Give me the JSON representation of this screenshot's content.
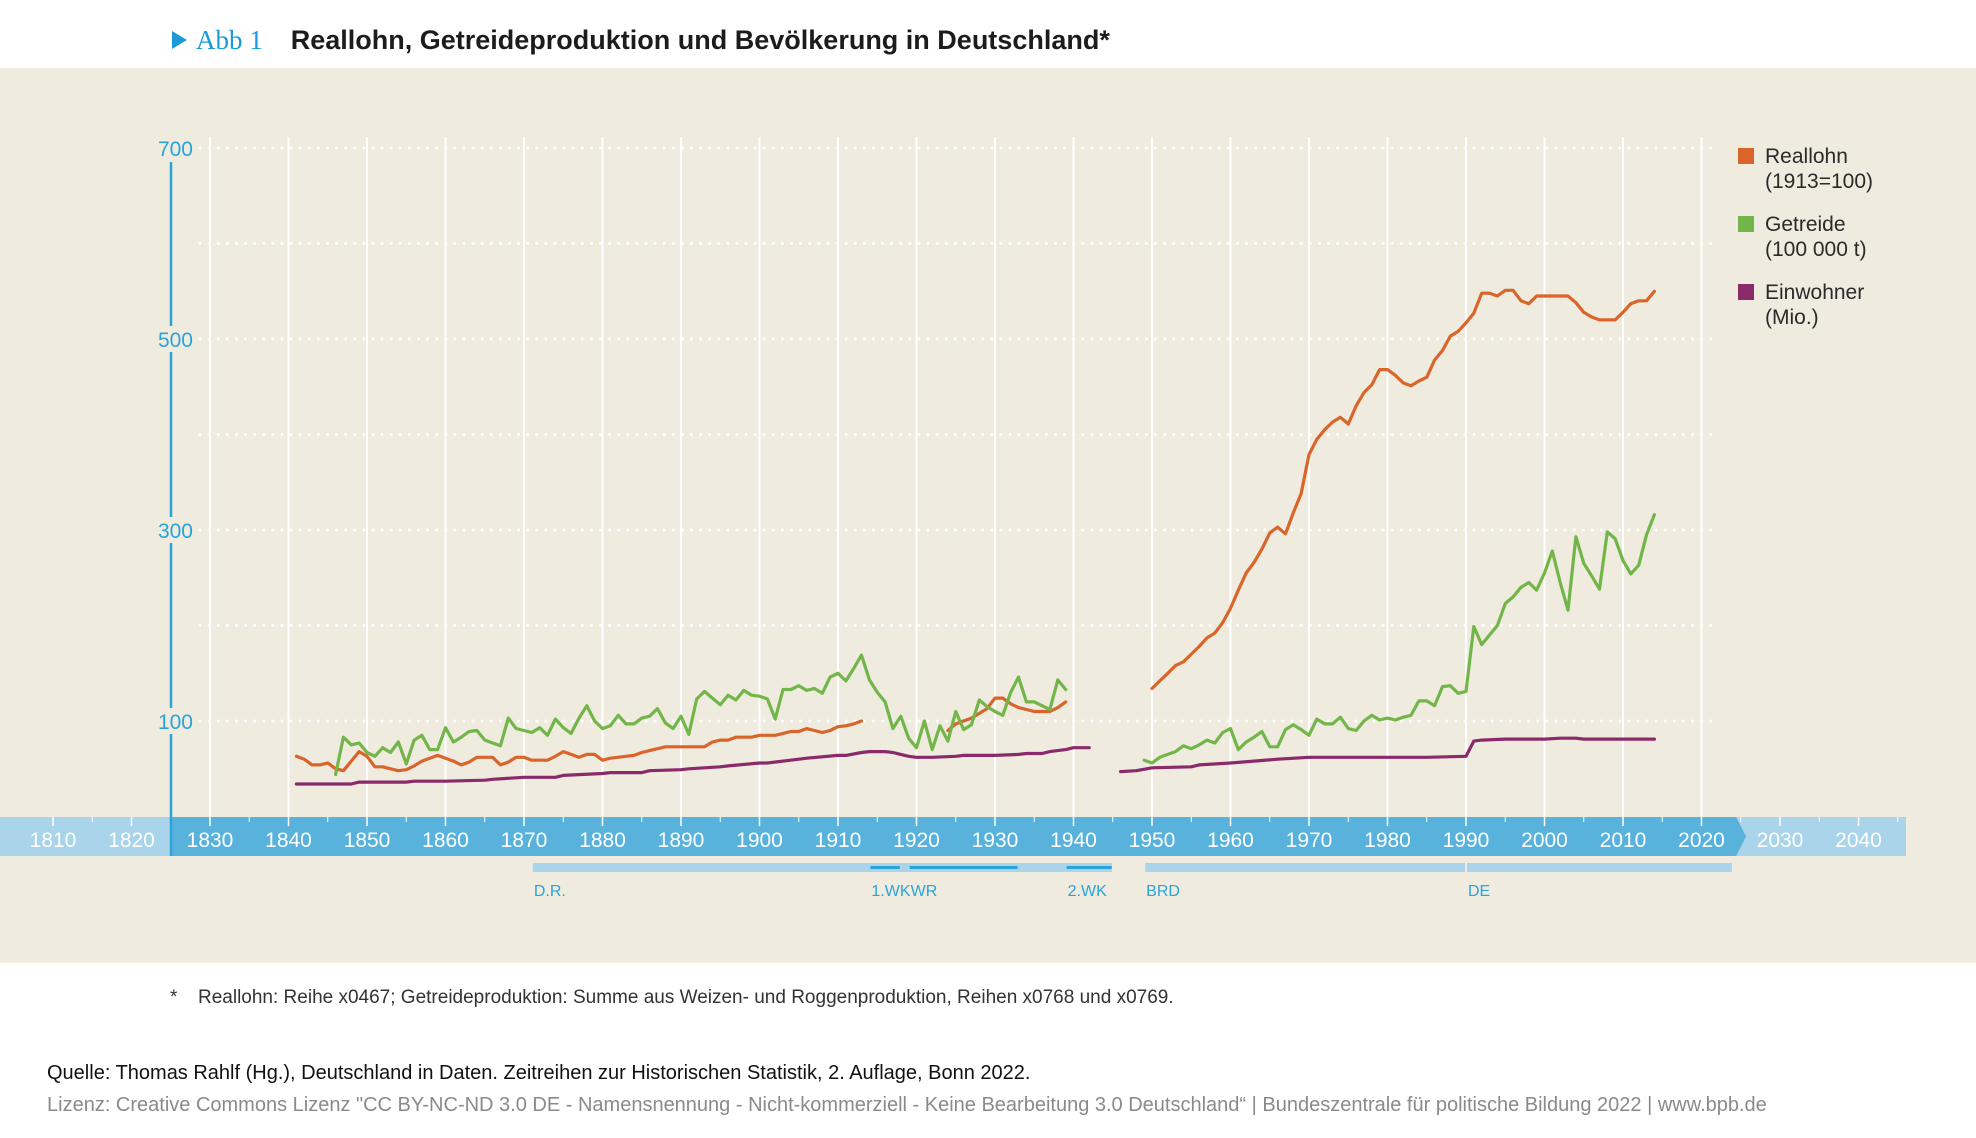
{
  "header": {
    "marker_label": "Abb 1",
    "title": "Reallohn, Getreideproduktion und Bevölkerung in Deutschland*"
  },
  "legend": [
    {
      "label": "Reallohn\n(1913=100)",
      "color": "#d9652b"
    },
    {
      "label": "Getreide\n(100 000 t)",
      "color": "#72b64a"
    },
    {
      "label": "Einwohner\n(Mio.)",
      "color": "#8a2a6a"
    }
  ],
  "footnote": {
    "star": "*",
    "text": "Reallohn: Reihe x0467; Getreideproduktion: Summe aus Weizen- und Roggenproduktion, Reihen x0768 und x0769."
  },
  "source": "Quelle: Thomas Rahlf (Hg.), Deutschland in Daten. Zeitreihen zur Historischen Statistik, 2. Auflage, Bonn 2022.",
  "license": "Lizenz: Creative Commons Lizenz \"CC BY-NC-ND 3.0 DE - Namensnennung - Nicht-kommerziell - Keine Bearbeitung 3.0 Deutschland“ | Bundeszentrale für politische Bildung 2022 | www.bpb.de",
  "colors": {
    "axis_blue": "#2aa4d8",
    "timeline_dark": "#58b2dc",
    "timeline_light": "#a9d4ea",
    "panel": "#efebdf"
  },
  "chart_data": {
    "type": "line",
    "title": "Reallohn, Getreideproduktion und Bevölkerung in Deutschland*",
    "xlabel": "",
    "ylabel": "",
    "ylim": [
      0,
      700
    ],
    "yticks": [
      100,
      300,
      500,
      700
    ],
    "ygrid_minor": [
      200,
      400,
      600
    ],
    "xlim": [
      1800,
      2050
    ],
    "xticks": [
      1810,
      1820,
      1830,
      1840,
      1850,
      1860,
      1870,
      1880,
      1890,
      1900,
      1910,
      1920,
      1930,
      1940,
      1950,
      1960,
      1970,
      1980,
      1990,
      2000,
      2010,
      2020,
      2030,
      2040
    ],
    "xgrid_range": [
      1830,
      2020
    ],
    "grid": true,
    "legend_position": "top-right",
    "periods": [
      {
        "label": "D.R.",
        "start": 1871,
        "end": 1945,
        "style": "bar"
      },
      {
        "label": "1.WK",
        "start": 1914,
        "end": 1918,
        "style": "line"
      },
      {
        "label": "WR",
        "start": 1919,
        "end": 1933,
        "style": "line"
      },
      {
        "label": "2.WK",
        "start": 1939,
        "end": 1945,
        "style": "line"
      },
      {
        "label": "BRD",
        "start": 1949,
        "end": 1990,
        "style": "bar"
      },
      {
        "label": "DE",
        "start": 1990,
        "end": 2024,
        "style": "bar"
      }
    ],
    "series": [
      {
        "name": "Reallohn (1913=100)",
        "color": "#d9652b",
        "segments": [
          {
            "x": [
              1841,
              1842,
              1843,
              1844,
              1845,
              1846,
              1847,
              1848,
              1849,
              1850,
              1851,
              1852,
              1853,
              1854,
              1855,
              1856,
              1857,
              1858,
              1859,
              1860,
              1861,
              1862,
              1863,
              1864,
              1865,
              1866,
              1867,
              1868,
              1869,
              1870,
              1871,
              1872,
              1873,
              1874,
              1875,
              1876,
              1877,
              1878,
              1879,
              1880,
              1881,
              1882,
              1883,
              1884,
              1885,
              1886,
              1887,
              1888,
              1889,
              1890,
              1891,
              1892,
              1893,
              1894,
              1895,
              1896,
              1897,
              1898,
              1899,
              1900,
              1901,
              1902,
              1903,
              1904,
              1905,
              1906,
              1907,
              1908,
              1909,
              1910,
              1911,
              1912,
              1913
            ],
            "y": [
              63,
              60,
              54,
              54,
              56,
              50,
              48,
              58,
              68,
              63,
              52,
              52,
              50,
              48,
              49,
              53,
              58,
              61,
              64,
              61,
              58,
              54,
              57,
              62,
              62,
              62,
              54,
              57,
              62,
              62,
              59,
              59,
              59,
              63,
              68,
              65,
              62,
              65,
              65,
              59,
              61,
              62,
              63,
              64,
              67,
              69,
              71,
              73,
              73,
              73,
              73,
              73,
              73,
              78,
              80,
              80,
              83,
              83,
              83,
              85,
              85,
              85,
              87,
              89,
              89,
              92,
              90,
              88,
              90,
              94,
              95,
              97,
              100
            ]
          },
          {
            "x": [
              1924,
              1925,
              1926,
              1927,
              1928,
              1929,
              1930,
              1931,
              1932,
              1933,
              1934,
              1935,
              1936,
              1937,
              1938,
              1939
            ],
            "y": [
              90,
              97,
              100,
              103,
              108,
              113,
              124,
              124,
              118,
              114,
              112,
              110,
              110,
              110,
              114,
              120
            ]
          },
          {
            "x": [
              1950,
              1951,
              1952,
              1953,
              1954,
              1955,
              1956,
              1957,
              1958,
              1959,
              1960,
              1961,
              1962,
              1963,
              1964,
              1965,
              1966,
              1967,
              1968,
              1969,
              1970,
              1971,
              1972,
              1973,
              1974,
              1975,
              1976,
              1977,
              1978,
              1979,
              1980,
              1981,
              1982,
              1983,
              1984,
              1985,
              1986,
              1987,
              1988,
              1989,
              1990,
              1991,
              1992,
              1993,
              1994,
              1995,
              1996,
              1997,
              1998,
              1999,
              2000,
              2001,
              2002,
              2003,
              2004,
              2005,
              2006,
              2007,
              2008,
              2009,
              2010,
              2011,
              2012,
              2013,
              2014
            ],
            "y": [
              134,
              142,
              150,
              158,
              162,
              170,
              178,
              187,
              192,
              203,
              218,
              237,
              255,
              266,
              280,
              297,
              303,
              296,
              318,
              338,
              379,
              395,
              405,
              413,
              418,
              411,
              430,
              444,
              452,
              468,
              468,
              462,
              454,
              451,
              456,
              460,
              478,
              488,
              503,
              508,
              517,
              527,
              548,
              548,
              545,
              551,
              551,
              540,
              537,
              545,
              545,
              545,
              545,
              545,
              538,
              528,
              523,
              520,
              520,
              520,
              528,
              537,
              540,
              540,
              550
            ]
          }
        ]
      },
      {
        "name": "Getreide (100 000 t)",
        "color": "#72b64a",
        "segments": [
          {
            "x": [
              1846,
              1847,
              1848,
              1849,
              1850,
              1851,
              1852,
              1853,
              1854,
              1855,
              1856,
              1857,
              1858,
              1859,
              1860,
              1861,
              1862,
              1863,
              1864,
              1865,
              1866,
              1867,
              1868,
              1869,
              1870,
              1871,
              1872,
              1873,
              1874,
              1875,
              1876,
              1877,
              1878,
              1879,
              1880,
              1881,
              1882,
              1883,
              1884,
              1885,
              1886,
              1887,
              1888,
              1889,
              1890,
              1891,
              1892,
              1893,
              1894,
              1895,
              1896,
              1897,
              1898,
              1899,
              1900,
              1901,
              1902,
              1903,
              1904,
              1905,
              1906,
              1907,
              1908,
              1909,
              1910,
              1911,
              1912,
              1913,
              1914,
              1915,
              1916,
              1917,
              1918,
              1919,
              1920,
              1921,
              1922,
              1923,
              1924,
              1925,
              1926,
              1927,
              1928,
              1929,
              1930,
              1931,
              1932,
              1933,
              1934,
              1935,
              1936,
              1937,
              1938,
              1939
            ],
            "y": [
              44,
              83,
              75,
              77,
              67,
              63,
              72,
              67,
              78,
              55,
              80,
              85,
              70,
              70,
              93,
              78,
              83,
              89,
              90,
              80,
              77,
              74,
              103,
              92,
              90,
              88,
              93,
              85,
              102,
              93,
              87,
              103,
              116,
              100,
              92,
              95,
              106,
              97,
              97,
              103,
              105,
              113,
              98,
              92,
              105,
              86,
              123,
              131,
              124,
              117,
              127,
              122,
              132,
              127,
              126,
              123,
              102,
              133,
              133,
              137,
              132,
              134,
              129,
              146,
              150,
              142,
              155,
              169,
              143,
              130,
              120,
              92,
              105,
              82,
              72,
              100,
              70,
              95,
              79,
              110,
              91,
              96,
              122,
              115,
              110,
              106,
              130,
              146,
              120,
              120,
              116,
              112,
              143,
              133
            ]
          },
          {
            "x": [
              1949,
              1950,
              1951,
              1952,
              1953,
              1954,
              1955,
              1956,
              1957,
              1958,
              1959,
              1960,
              1961,
              1962,
              1963,
              1964,
              1965,
              1966,
              1967,
              1968,
              1969,
              1970,
              1971,
              1972,
              1973,
              1974,
              1975,
              1976,
              1977,
              1978,
              1979,
              1980,
              1981,
              1982,
              1983,
              1984,
              1985,
              1986,
              1987,
              1988,
              1989,
              1990,
              1991,
              1992,
              1993,
              1994,
              1995,
              1996,
              1997,
              1998,
              1999,
              2000,
              2001,
              2002,
              2003,
              2004,
              2005,
              2006,
              2007,
              2008,
              2009,
              2010,
              2011,
              2012,
              2013,
              2014
            ],
            "y": [
              59,
              56,
              62,
              65,
              68,
              74,
              71,
              75,
              80,
              77,
              88,
              92,
              70,
              78,
              83,
              89,
              73,
              73,
              91,
              96,
              91,
              85,
              102,
              97,
              97,
              104,
              92,
              90,
              100,
              106,
              101,
              103,
              101,
              104,
              106,
              121,
              121,
              116,
              136,
              137,
              129,
              131,
              199,
              180,
              190,
              200,
              223,
              230,
              240,
              245,
              237,
              255,
              278,
              245,
              216,
              293,
              265,
              252,
              238,
              298,
              291,
              268,
              254,
              263,
              295,
              316
            ]
          }
        ]
      },
      {
        "name": "Einwohner (Mio.)",
        "color": "#8a2a6a",
        "segments": [
          {
            "x": [
              1841,
              1845,
              1848,
              1849,
              1855,
              1856,
              1860,
              1865,
              1866,
              1870,
              1874,
              1875,
              1880,
              1881,
              1885,
              1886,
              1890,
              1891,
              1895,
              1896,
              1900,
              1901,
              1905,
              1906,
              1910,
              1911,
              1913,
              1914,
              1916,
              1917,
              1918,
              1919,
              1920,
              1922,
              1925,
              1926,
              1930,
              1933,
              1934,
              1936,
              1937,
              1939,
              1940,
              1942
            ],
            "y": [
              34,
              34,
              34,
              36,
              36,
              37,
              37,
              38,
              39,
              41,
              41,
              43,
              45,
              46,
              46,
              48,
              49,
              50,
              52,
              53,
              56,
              56,
              60,
              61,
              64,
              64,
              67,
              68,
              68,
              67,
              65,
              63,
              62,
              62,
              63,
              64,
              64,
              65,
              66,
              66,
              68,
              70,
              72,
              72
            ]
          },
          {
            "x": [
              1946,
              1948,
              1950,
              1955,
              1956,
              1960,
              1963,
              1966,
              1970,
              1975,
              1980,
              1985,
              1990,
              1991,
              1992,
              1995,
              2000,
              2002,
              2003,
              2004,
              2005,
              2010,
              2014
            ],
            "y": [
              47,
              48,
              51,
              52,
              54,
              56,
              58,
              60,
              62,
              62,
              62,
              62,
              63,
              79,
              80,
              81,
              81,
              82,
              82,
              82,
              81,
              81,
              81
            ]
          }
        ]
      }
    ]
  }
}
